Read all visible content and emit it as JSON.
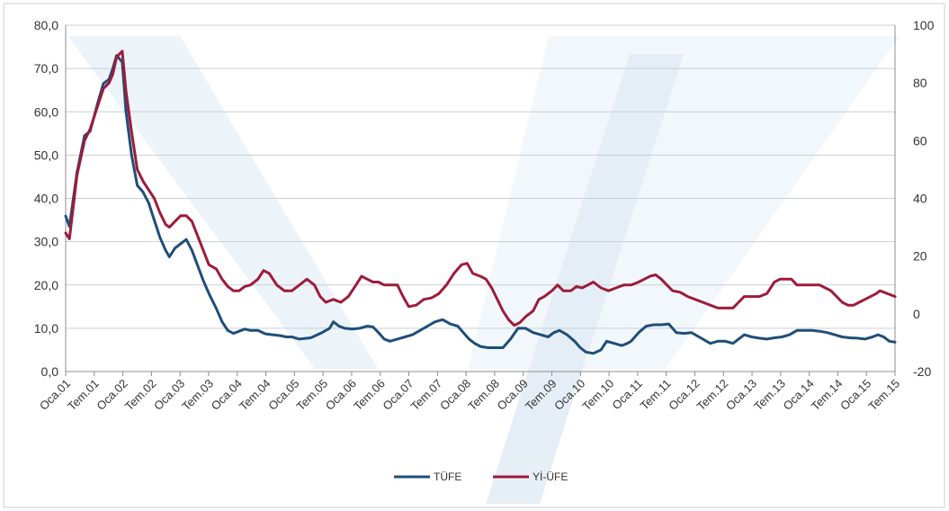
{
  "chart_data": {
    "type": "line",
    "title": "",
    "xlabel": "",
    "ylabel": "",
    "ylim": [
      0,
      80
    ],
    "y2lim": [
      -20,
      100
    ],
    "y_ticks": [
      "0,0",
      "10,0",
      "20,0",
      "30,0",
      "40,0",
      "50,0",
      "60,0",
      "70,0",
      "80,0"
    ],
    "y2_ticks": [
      "-20",
      "0",
      "20",
      "40",
      "60",
      "80",
      "100"
    ],
    "categories": [
      "Oca.01",
      "Tem.01",
      "Oca.02",
      "Tem.02",
      "Oca.03",
      "Tem.03",
      "Oca.04",
      "Tem.04",
      "Oca.05",
      "Tem.05",
      "Oca.06",
      "Tem.06",
      "Oca.07",
      "Tem.07",
      "Oca.08",
      "Tem.08",
      "Oca.09",
      "Tem.09",
      "Oca.10",
      "Tem.10",
      "Oca.11",
      "Tem.11",
      "Oca.12",
      "Tem.12",
      "Oca.13",
      "Tem.13",
      "Oca.14",
      "Tem.14",
      "Oca.15",
      "Tem.15"
    ],
    "grid": true,
    "legend_position": "bottom",
    "series": [
      {
        "name": "TÜFE",
        "axis": "left",
        "color": "#1f4e79",
        "points": [
          [
            0,
            35.9
          ],
          [
            0.1,
            33.5
          ],
          [
            0.3,
            46
          ],
          [
            0.5,
            54.5
          ],
          [
            0.65,
            55.5
          ],
          [
            0.85,
            62
          ],
          [
            1.0,
            66.5
          ],
          [
            1.15,
            67.5
          ],
          [
            1.25,
            70
          ],
          [
            1.35,
            73
          ],
          [
            1.5,
            71.5
          ],
          [
            1.6,
            60
          ],
          [
            1.75,
            50
          ],
          [
            1.9,
            43
          ],
          [
            2.05,
            41.5
          ],
          [
            2.2,
            39
          ],
          [
            2.35,
            35
          ],
          [
            2.5,
            31
          ],
          [
            2.65,
            28
          ],
          [
            2.75,
            26.5
          ],
          [
            2.9,
            28.5
          ],
          [
            3.05,
            29.5
          ],
          [
            3.2,
            30.5
          ],
          [
            3.35,
            28
          ],
          [
            3.5,
            24.5
          ],
          [
            3.65,
            21
          ],
          [
            3.8,
            18
          ],
          [
            4.0,
            14.5
          ],
          [
            4.15,
            11.5
          ],
          [
            4.3,
            9.5
          ],
          [
            4.45,
            8.8
          ],
          [
            4.6,
            9.3
          ],
          [
            4.75,
            9.8
          ],
          [
            4.9,
            9.5
          ],
          [
            5.1,
            9.5
          ],
          [
            5.3,
            8.7
          ],
          [
            5.5,
            8.5
          ],
          [
            5.7,
            8.3
          ],
          [
            5.85,
            8.0
          ],
          [
            6.0,
            8.0
          ],
          [
            6.2,
            7.5
          ],
          [
            6.5,
            7.8
          ],
          [
            6.8,
            9.0
          ],
          [
            7.0,
            10.0
          ],
          [
            7.1,
            11.5
          ],
          [
            7.25,
            10.5
          ],
          [
            7.4,
            10.0
          ],
          [
            7.6,
            9.8
          ],
          [
            7.8,
            10.0
          ],
          [
            8.0,
            10.5
          ],
          [
            8.15,
            10.3
          ],
          [
            8.3,
            9.0
          ],
          [
            8.45,
            7.5
          ],
          [
            8.6,
            7.0
          ],
          [
            8.8,
            7.5
          ],
          [
            9.0,
            8.0
          ],
          [
            9.2,
            8.5
          ],
          [
            9.4,
            9.5
          ],
          [
            9.6,
            10.5
          ],
          [
            9.8,
            11.5
          ],
          [
            10.0,
            12.0
          ],
          [
            10.2,
            11.0
          ],
          [
            10.4,
            10.5
          ],
          [
            10.55,
            9.0
          ],
          [
            10.7,
            7.5
          ],
          [
            10.85,
            6.5
          ],
          [
            11.0,
            5.8
          ],
          [
            11.2,
            5.5
          ],
          [
            11.4,
            5.5
          ],
          [
            11.6,
            5.5
          ],
          [
            11.8,
            7.5
          ],
          [
            12.0,
            10.0
          ],
          [
            12.2,
            10.0
          ],
          [
            12.4,
            9.0
          ],
          [
            12.6,
            8.5
          ],
          [
            12.8,
            8.0
          ],
          [
            12.95,
            9.0
          ],
          [
            13.1,
            9.5
          ],
          [
            13.3,
            8.5
          ],
          [
            13.5,
            7.0
          ],
          [
            13.65,
            5.5
          ],
          [
            13.8,
            4.5
          ],
          [
            14.0,
            4.2
          ],
          [
            14.2,
            5.0
          ],
          [
            14.35,
            7.0
          ],
          [
            14.55,
            6.5
          ],
          [
            14.75,
            6.0
          ],
          [
            14.9,
            6.5
          ],
          [
            15.0,
            7.0
          ],
          [
            15.2,
            9.0
          ],
          [
            15.4,
            10.5
          ],
          [
            15.6,
            10.8
          ],
          [
            15.8,
            10.8
          ],
          [
            16.0,
            11.0
          ],
          [
            16.2,
            9.0
          ],
          [
            16.4,
            8.8
          ],
          [
            16.6,
            9.0
          ],
          [
            16.8,
            8.0
          ],
          [
            17.0,
            7.0
          ],
          [
            17.1,
            6.5
          ],
          [
            17.3,
            7.0
          ],
          [
            17.5,
            7.0
          ],
          [
            17.7,
            6.5
          ],
          [
            17.85,
            7.5
          ],
          [
            18.0,
            8.5
          ],
          [
            18.2,
            8.0
          ],
          [
            18.4,
            7.7
          ],
          [
            18.6,
            7.5
          ],
          [
            18.8,
            7.8
          ],
          [
            19.0,
            8.0
          ],
          [
            19.2,
            8.5
          ],
          [
            19.4,
            9.5
          ],
          [
            19.6,
            9.5
          ],
          [
            19.8,
            9.5
          ],
          [
            20.0,
            9.3
          ],
          [
            20.2,
            9.0
          ],
          [
            20.4,
            8.5
          ],
          [
            20.6,
            8.0
          ],
          [
            20.8,
            7.8
          ],
          [
            21.0,
            7.7
          ],
          [
            21.2,
            7.5
          ],
          [
            21.4,
            8.0
          ],
          [
            21.55,
            8.5
          ],
          [
            21.7,
            8.0
          ],
          [
            21.85,
            7.0
          ],
          [
            22.0,
            6.8
          ]
        ]
      },
      {
        "name": "Yİ-ÜFE",
        "axis": "right",
        "color": "#9e1b3a",
        "points": [
          [
            0,
            28
          ],
          [
            0.1,
            26
          ],
          [
            0.3,
            48
          ],
          [
            0.5,
            60
          ],
          [
            0.65,
            64
          ],
          [
            0.85,
            72
          ],
          [
            1.0,
            78
          ],
          [
            1.15,
            80
          ],
          [
            1.25,
            83
          ],
          [
            1.35,
            89
          ],
          [
            1.5,
            91
          ],
          [
            1.6,
            77
          ],
          [
            1.75,
            63
          ],
          [
            1.9,
            50
          ],
          [
            2.05,
            46
          ],
          [
            2.2,
            43
          ],
          [
            2.35,
            40
          ],
          [
            2.5,
            35
          ],
          [
            2.65,
            31
          ],
          [
            2.75,
            30
          ],
          [
            2.9,
            32
          ],
          [
            3.05,
            34
          ],
          [
            3.2,
            34
          ],
          [
            3.35,
            32
          ],
          [
            3.5,
            27
          ],
          [
            3.65,
            22
          ],
          [
            3.8,
            17
          ],
          [
            4.0,
            15.5
          ],
          [
            4.15,
            12
          ],
          [
            4.3,
            9.5
          ],
          [
            4.45,
            8
          ],
          [
            4.6,
            8
          ],
          [
            4.75,
            9.5
          ],
          [
            4.9,
            10
          ],
          [
            5.1,
            12
          ],
          [
            5.25,
            15
          ],
          [
            5.4,
            14
          ],
          [
            5.6,
            10
          ],
          [
            5.8,
            8
          ],
          [
            6.0,
            8
          ],
          [
            6.2,
            10
          ],
          [
            6.4,
            12
          ],
          [
            6.6,
            10
          ],
          [
            6.75,
            6
          ],
          [
            6.9,
            4
          ],
          [
            7.1,
            5
          ],
          [
            7.3,
            4
          ],
          [
            7.5,
            6
          ],
          [
            7.7,
            10
          ],
          [
            7.85,
            13
          ],
          [
            8.0,
            12
          ],
          [
            8.15,
            11
          ],
          [
            8.3,
            11
          ],
          [
            8.45,
            10
          ],
          [
            8.6,
            10
          ],
          [
            8.8,
            10
          ],
          [
            8.95,
            6
          ],
          [
            9.1,
            2.5
          ],
          [
            9.3,
            3
          ],
          [
            9.5,
            5
          ],
          [
            9.7,
            5.5
          ],
          [
            9.9,
            7
          ],
          [
            10.1,
            10
          ],
          [
            10.3,
            14
          ],
          [
            10.5,
            17
          ],
          [
            10.65,
            17.5
          ],
          [
            10.8,
            14
          ],
          [
            11.0,
            13
          ],
          [
            11.15,
            12
          ],
          [
            11.3,
            9
          ],
          [
            11.45,
            5
          ],
          [
            11.6,
            1
          ],
          [
            11.75,
            -2
          ],
          [
            11.9,
            -4
          ],
          [
            12.05,
            -3
          ],
          [
            12.2,
            -1
          ],
          [
            12.4,
            1
          ],
          [
            12.55,
            5
          ],
          [
            12.7,
            6
          ],
          [
            12.9,
            8
          ],
          [
            13.05,
            10
          ],
          [
            13.2,
            8
          ],
          [
            13.4,
            8
          ],
          [
            13.55,
            9.5
          ],
          [
            13.7,
            9
          ],
          [
            13.85,
            10
          ],
          [
            14.0,
            11
          ],
          [
            14.2,
            9
          ],
          [
            14.4,
            8
          ],
          [
            14.6,
            9
          ],
          [
            14.8,
            10
          ],
          [
            15.0,
            10
          ],
          [
            15.2,
            11
          ],
          [
            15.35,
            12
          ],
          [
            15.5,
            13
          ],
          [
            15.65,
            13.5
          ],
          [
            15.8,
            12
          ],
          [
            15.95,
            10
          ],
          [
            16.1,
            8
          ],
          [
            16.3,
            7.5
          ],
          [
            16.5,
            6
          ],
          [
            16.7,
            5
          ],
          [
            16.9,
            4
          ],
          [
            17.1,
            3
          ],
          [
            17.3,
            2
          ],
          [
            17.5,
            2
          ],
          [
            17.7,
            2
          ],
          [
            17.85,
            4
          ],
          [
            18.0,
            6
          ],
          [
            18.2,
            6
          ],
          [
            18.4,
            6
          ],
          [
            18.6,
            7
          ],
          [
            18.8,
            11
          ],
          [
            18.95,
            12
          ],
          [
            19.1,
            12
          ],
          [
            19.25,
            12
          ],
          [
            19.4,
            10
          ],
          [
            19.6,
            10
          ],
          [
            19.8,
            10
          ],
          [
            20.0,
            10
          ],
          [
            20.15,
            9
          ],
          [
            20.3,
            8
          ],
          [
            20.45,
            6
          ],
          [
            20.6,
            4
          ],
          [
            20.75,
            3
          ],
          [
            20.9,
            3
          ],
          [
            21.05,
            4
          ],
          [
            21.2,
            5
          ],
          [
            21.35,
            6
          ],
          [
            21.5,
            7
          ],
          [
            21.6,
            8
          ],
          [
            21.8,
            7
          ],
          [
            22.0,
            6
          ]
        ]
      }
    ]
  }
}
